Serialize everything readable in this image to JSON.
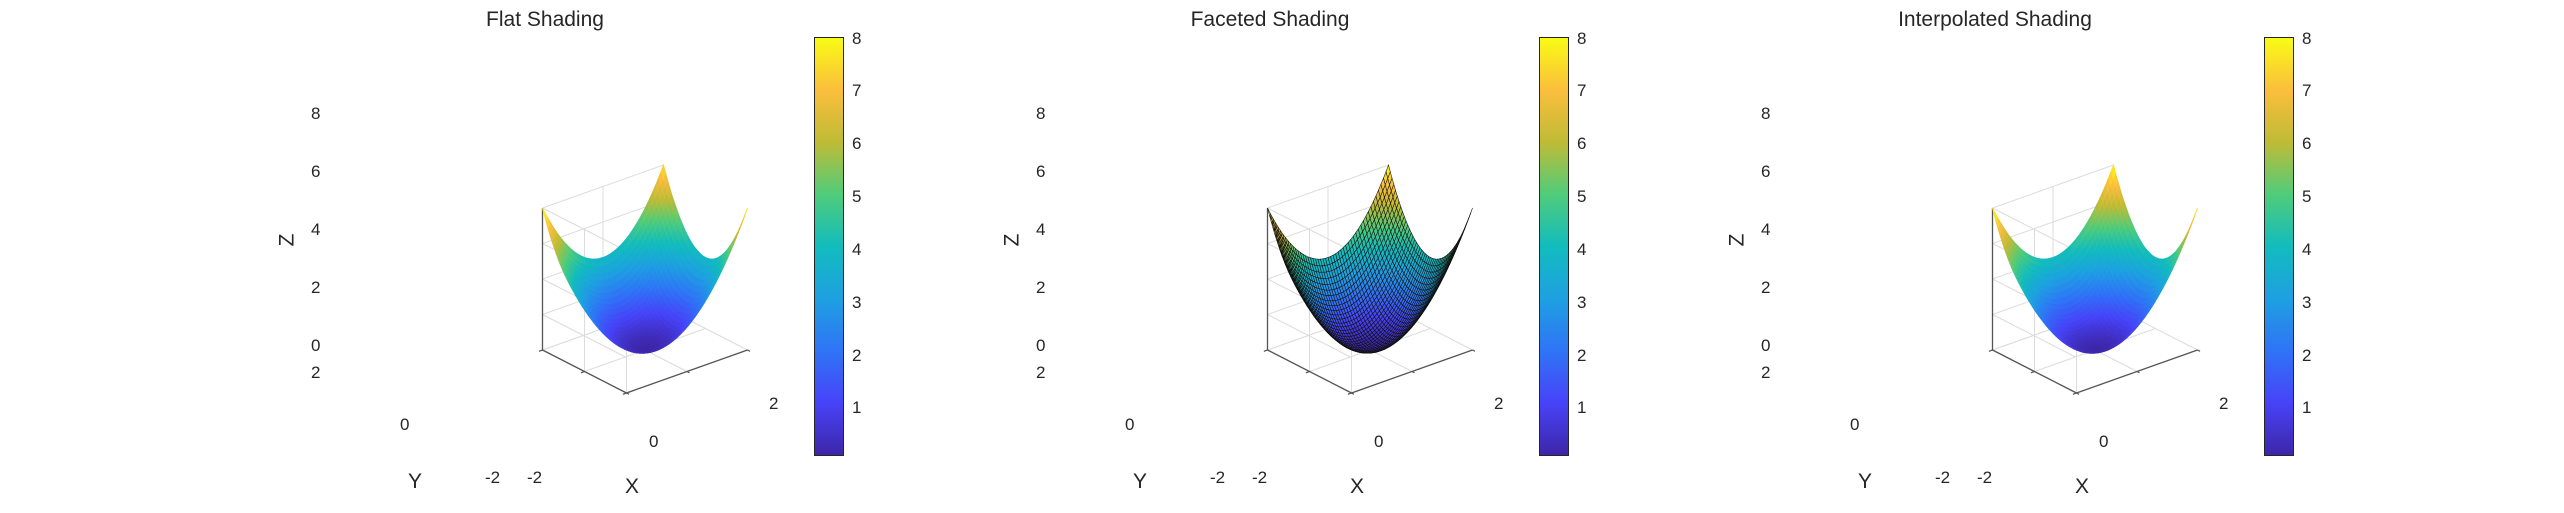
{
  "palette": [
    "#3e26a8",
    "#4743f8",
    "#2f74f6",
    "#1ea0e1",
    "#12bcbd",
    "#50cc7a",
    "#bfbb36",
    "#fbbe3c",
    "#f9fb15"
  ],
  "panels": [
    {
      "title": "Flat Shading",
      "shading": "flat"
    },
    {
      "title": "Faceted Shading",
      "shading": "faceted"
    },
    {
      "title": "Interpolated Shading",
      "shading": "interp"
    }
  ],
  "axes": {
    "xlabel": "X",
    "ylabel": "Y",
    "zlabel": "Z",
    "xticks": [
      "-2",
      "0",
      "2"
    ],
    "yticks": [
      "-2",
      "0",
      "2"
    ],
    "zticks": [
      "0",
      "2",
      "4",
      "6",
      "8"
    ],
    "colorbar_ticks": [
      "1",
      "2",
      "3",
      "4",
      "5",
      "6",
      "7",
      "8"
    ]
  },
  "chart_data": [
    {
      "type": "surface",
      "title": "Flat Shading",
      "function": "Z = X^2 + Y^2",
      "xlabel": "X",
      "ylabel": "Y",
      "zlabel": "Z",
      "xlim": [
        -2,
        2
      ],
      "ylim": [
        -2,
        2
      ],
      "zlim": [
        0,
        8
      ],
      "clim": [
        0,
        8
      ],
      "colorbar": true,
      "shading": "flat"
    },
    {
      "type": "surface",
      "title": "Faceted Shading",
      "function": "Z = X^2 + Y^2",
      "xlabel": "X",
      "ylabel": "Y",
      "zlabel": "Z",
      "xlim": [
        -2,
        2
      ],
      "ylim": [
        -2,
        2
      ],
      "zlim": [
        0,
        8
      ],
      "clim": [
        0,
        8
      ],
      "colorbar": true,
      "shading": "faceted"
    },
    {
      "type": "surface",
      "title": "Interpolated Shading",
      "function": "Z = X^2 + Y^2",
      "xlabel": "X",
      "ylabel": "Y",
      "zlabel": "Z",
      "xlim": [
        -2,
        2
      ],
      "ylim": [
        -2,
        2
      ],
      "zlim": [
        0,
        8
      ],
      "clim": [
        0,
        8
      ],
      "colorbar": true,
      "shading": "interp"
    }
  ]
}
